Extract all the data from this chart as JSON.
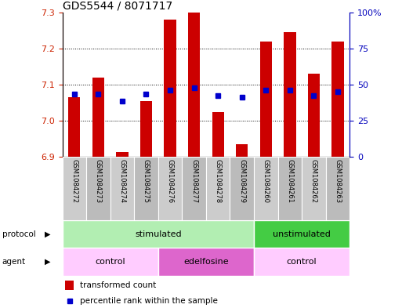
{
  "title": "GDS5544 / 8071717",
  "samples": [
    "GSM1084272",
    "GSM1084273",
    "GSM1084274",
    "GSM1084275",
    "GSM1084276",
    "GSM1084277",
    "GSM1084278",
    "GSM1084279",
    "GSM1084260",
    "GSM1084261",
    "GSM1084262",
    "GSM1084263"
  ],
  "bar_values": [
    7.065,
    7.12,
    6.915,
    7.055,
    7.28,
    7.3,
    7.025,
    6.935,
    7.22,
    7.245,
    7.13,
    7.22
  ],
  "blue_values": [
    7.075,
    7.075,
    7.055,
    7.075,
    7.085,
    7.092,
    7.07,
    7.065,
    7.085,
    7.085,
    7.07,
    7.08
  ],
  "ylim": [
    6.9,
    7.3
  ],
  "yticks": [
    6.9,
    7.0,
    7.1,
    7.2,
    7.3
  ],
  "right_yticks": [
    0,
    25,
    50,
    75,
    100
  ],
  "right_yticklabels": [
    "0",
    "25",
    "50",
    "75",
    "100%"
  ],
  "bar_color": "#CC0000",
  "blue_color": "#0000CC",
  "tick_color_left": "#CC2200",
  "tick_color_right": "#0000BB",
  "protocol_regions": [
    {
      "text": "stimulated",
      "start": 0,
      "end": 8,
      "color": "#B2EEB2"
    },
    {
      "text": "unstimulated",
      "start": 8,
      "end": 12,
      "color": "#44CC44"
    }
  ],
  "agent_regions": [
    {
      "text": "control",
      "start": 0,
      "end": 4,
      "color": "#FFCCFF"
    },
    {
      "text": "edelfosine",
      "start": 4,
      "end": 8,
      "color": "#DD66CC"
    },
    {
      "text": "control",
      "start": 8,
      "end": 12,
      "color": "#FFCCFF"
    }
  ],
  "legend_items": [
    {
      "label": "transformed count",
      "color": "#CC0000",
      "marker": "s"
    },
    {
      "label": "percentile rank within the sample",
      "color": "#0000CC",
      "marker": "s"
    }
  ],
  "cell_color_even": "#CCCCCC",
  "cell_color_odd": "#BBBBBB"
}
